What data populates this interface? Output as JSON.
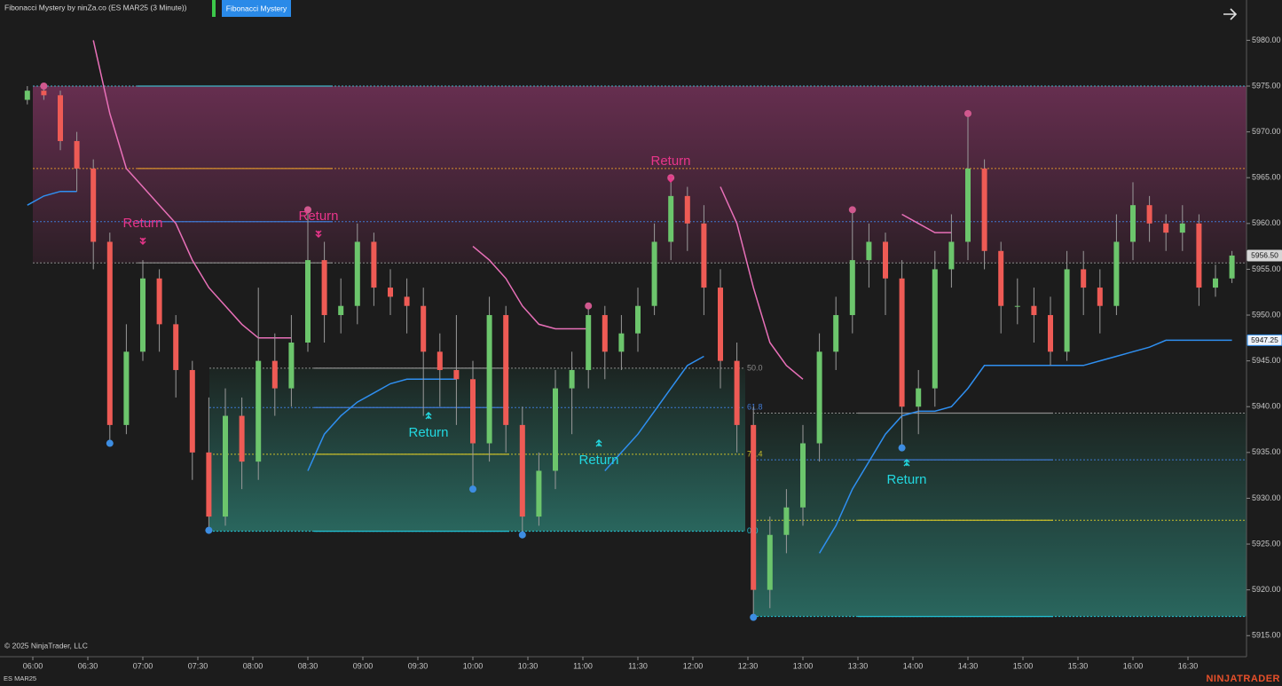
{
  "header": {
    "title": "Fibonacci Mystery by ninZa.co (ES MAR25 (3 Minute))",
    "button": "Fibonacci Mystery"
  },
  "chart_data": {
    "type": "candlestick",
    "up_color": "#6cc56c",
    "down_color": "#ee5b55",
    "open": [
      5973.5,
      5974.5,
      5974,
      5969,
      5966,
      5958,
      5938,
      5946,
      5954,
      5949,
      5944,
      5935,
      5928,
      5939,
      5934,
      5945,
      5942,
      5947,
      5956,
      5950,
      5951,
      5958,
      5953,
      5952,
      5951,
      5946,
      5944,
      5943,
      5936,
      5950,
      5938,
      5928,
      5933,
      5942,
      5944,
      5950,
      5946,
      5948,
      5951,
      5958,
      5963,
      5960,
      5953,
      5945,
      5938,
      5920,
      5926,
      5929,
      5936,
      5946,
      5950,
      5956,
      5958,
      5954,
      5940,
      5942,
      5955,
      5958,
      5966,
      5957,
      5951,
      5951,
      5950,
      5946,
      5955,
      5953,
      5951,
      5958,
      5962,
      5960,
      5959,
      5960,
      5953,
      5954
    ],
    "high": [
      5975,
      5975,
      5974.5,
      5970,
      5967,
      5959,
      5949,
      5956,
      5955,
      5950,
      5945,
      5941,
      5942,
      5941,
      5953,
      5948,
      5950,
      5961.5,
      5958,
      5954,
      5960,
      5959,
      5955,
      5954,
      5953,
      5948,
      5950,
      5945,
      5952,
      5951,
      5940,
      5935,
      5944,
      5946,
      5951,
      5951,
      5950,
      5953,
      5960,
      5965,
      5964,
      5962,
      5955,
      5947,
      5940,
      5928,
      5931,
      5938,
      5948,
      5952,
      5961.5,
      5960,
      5959,
      5956,
      5944,
      5957,
      5961,
      5972,
      5967,
      5958,
      5954,
      5953,
      5952,
      5957,
      5957,
      5955,
      5961,
      5964.5,
      5963,
      5961,
      5962,
      5961,
      5955.5,
      5957
    ],
    "low": [
      5973,
      5973.5,
      5968,
      5963.5,
      5955,
      5936,
      5937,
      5945,
      5946,
      5941,
      5932,
      5926.5,
      5927,
      5931,
      5932,
      5939,
      5940,
      5946,
      5947,
      5948,
      5949,
      5951,
      5950,
      5948,
      5939,
      5940,
      5938,
      5931,
      5934,
      5935,
      5926,
      5927,
      5931,
      5937,
      5942,
      5943,
      5944,
      5946,
      5950,
      5956,
      5957,
      5950,
      5942,
      5935,
      5917,
      5918,
      5924,
      5927,
      5934,
      5944,
      5948,
      5953,
      5950,
      5935.5,
      5937,
      5940,
      5953,
      5956,
      5955,
      5948,
      5949,
      5947,
      5944.5,
      5945,
      5950,
      5948,
      5950,
      5956,
      5958,
      5957,
      5957,
      5951,
      5952,
      5953.5
    ],
    "close": [
      5974.5,
      5974,
      5969,
      5966,
      5958,
      5938,
      5946,
      5954,
      5949,
      5944,
      5935,
      5928,
      5939,
      5934,
      5945,
      5942,
      5947,
      5956,
      5950,
      5951,
      5958,
      5953,
      5952,
      5951,
      5946,
      5944,
      5943,
      5936,
      5950,
      5938,
      5928,
      5933,
      5942,
      5944,
      5950,
      5946,
      5948,
      5951,
      5958,
      5963,
      5960,
      5953,
      5945,
      5938,
      5920,
      5926,
      5929,
      5936,
      5946,
      5950,
      5956,
      5958,
      5954,
      5940,
      5942,
      5955,
      5958,
      5966,
      5957,
      5951,
      5951,
      5950,
      5946,
      5955,
      5953,
      5951,
      5958,
      5962,
      5960,
      5959,
      5960,
      5953,
      5954,
      5956.5
    ],
    "upper_trail": {
      "color": "#e870b8",
      "values": [
        null,
        null,
        null,
        null,
        5980,
        5972,
        5966,
        5964,
        5962,
        5960,
        5956,
        5953,
        5951,
        5949,
        5947.5,
        5947.5,
        5947.5,
        null,
        null,
        null,
        null,
        null,
        null,
        null,
        null,
        null,
        null,
        5957.5,
        5956,
        5954,
        5951,
        5949,
        5948.5,
        5948.5,
        5948.5,
        null,
        null,
        null,
        null,
        null,
        null,
        null,
        5964,
        5960,
        5953,
        5947,
        5944.5,
        5943,
        null,
        null,
        null,
        null,
        null,
        5961,
        5960,
        5959,
        5959,
        null,
        null,
        null,
        null,
        null,
        null,
        null,
        null,
        null,
        null,
        null,
        null,
        null,
        null,
        null,
        null,
        null
      ]
    },
    "lower_trail": {
      "color": "#2f8ff0",
      "values": [
        5962,
        5963,
        5963.5,
        5963.5,
        null,
        null,
        null,
        null,
        null,
        null,
        null,
        null,
        null,
        null,
        null,
        null,
        null,
        5933,
        5937,
        5939,
        5940.5,
        5941.5,
        5942.5,
        5943,
        5943,
        5943,
        5943,
        null,
        null,
        null,
        null,
        null,
        null,
        null,
        null,
        5933,
        5935,
        5937,
        5939.5,
        5942,
        5944.5,
        5945.5,
        null,
        null,
        null,
        null,
        null,
        null,
        5924,
        5927,
        5931,
        5934,
        5937,
        5939,
        5939.5,
        5939.5,
        5940,
        5942,
        5944.5,
        5944.5,
        5944.5,
        5944.5,
        5944.5,
        5944.5,
        5944.5,
        5945,
        5945.5,
        5946,
        5946.5,
        5947.25,
        5947.25,
        5947.25,
        5947.25,
        5947.25
      ]
    },
    "swing_highs": [
      null,
      5975,
      null,
      null,
      null,
      null,
      null,
      null,
      null,
      null,
      null,
      null,
      null,
      null,
      null,
      null,
      null,
      5961.5,
      null,
      null,
      null,
      null,
      null,
      null,
      null,
      null,
      null,
      null,
      null,
      null,
      null,
      null,
      null,
      null,
      5951,
      null,
      null,
      null,
      null,
      5965,
      null,
      null,
      null,
      null,
      null,
      null,
      null,
      null,
      null,
      null,
      5961.5,
      null,
      null,
      null,
      null,
      null,
      null,
      5972,
      null,
      null,
      null,
      null,
      null,
      null,
      null,
      null,
      null,
      null,
      null,
      null,
      null,
      null,
      null,
      null
    ],
    "swing_lows": [
      null,
      null,
      null,
      null,
      null,
      5936,
      null,
      null,
      null,
      null,
      null,
      5926.5,
      null,
      null,
      null,
      null,
      null,
      null,
      null,
      null,
      null,
      null,
      null,
      null,
      null,
      null,
      null,
      5931,
      null,
      null,
      5926,
      null,
      null,
      null,
      null,
      null,
      null,
      null,
      null,
      null,
      null,
      null,
      null,
      null,
      5917,
      null,
      null,
      null,
      null,
      null,
      null,
      null,
      null,
      5935.5,
      null,
      null,
      null,
      null,
      null,
      null,
      null,
      null,
      null,
      null,
      null,
      null,
      null,
      null,
      null,
      null,
      null,
      null,
      null,
      null
    ],
    "zones": [
      {
        "kind": "bear",
        "levels": [
          5975,
          5966,
          5960.2,
          5955.7
        ],
        "line_colors": [
          "#3fb6c8",
          "#d7902c",
          "#3f78d0",
          "#8a8a8a"
        ]
      },
      {
        "kind": "bull",
        "levels": [
          5944.2,
          5939.9,
          5934.8,
          5926.4
        ],
        "line_colors": [
          "#8a8a8a",
          "#3f78d0",
          "#c8bd2a",
          "#22c3d6"
        ]
      },
      {
        "kind": "bull",
        "levels": [
          5939.3,
          5934.2,
          5927.6,
          5917.1
        ],
        "line_colors": [
          "#8a8a8a",
          "#3f78d0",
          "#c8bd2a",
          "#22c3d6"
        ]
      }
    ],
    "fib_labels": [
      "50.0",
      "61.8",
      "76.4",
      "0.0"
    ],
    "annotations": [
      {
        "text": "Return",
        "color": "#e8358a"
      },
      {
        "text": "Return",
        "color": "#e8358a"
      },
      {
        "text": "Return",
        "color": "#e8358a"
      },
      {
        "text": "Return",
        "color": "#22d8e0"
      },
      {
        "text": "Return",
        "color": "#22d8e0"
      },
      {
        "text": "Return",
        "color": "#22d8e0"
      }
    ],
    "ylim": [
      5912.7,
      5984.4
    ],
    "yticks": [
      {
        "value": 5915,
        "label": "5915.00"
      },
      {
        "value": 5920,
        "label": "5920.00"
      },
      {
        "value": 5925,
        "label": "5925.00"
      },
      {
        "value": 5930,
        "label": "5930.00"
      },
      {
        "value": 5935,
        "label": "5935.00"
      },
      {
        "value": 5940,
        "label": "5940.00"
      },
      {
        "value": 5945,
        "label": "5945.00"
      },
      {
        "value": 5950,
        "label": "5950.00"
      },
      {
        "value": 5955,
        "label": "5955.00"
      },
      {
        "value": 5960,
        "label": "5960.00"
      },
      {
        "value": 5965,
        "label": "5965.00"
      },
      {
        "value": 5970,
        "label": "5970.00"
      },
      {
        "value": 5975,
        "label": "5975.00"
      },
      {
        "value": 5980,
        "label": "5980.00"
      }
    ],
    "xticks": [
      "06:00",
      "06:30",
      "07:00",
      "07:30",
      "08:00",
      "08:30",
      "09:00",
      "09:30",
      "10:00",
      "10:30",
      "11:00",
      "11:30",
      "12:00",
      "12:30",
      "13:00",
      "13:30",
      "14:00",
      "14:30",
      "15:00",
      "15:30",
      "16:00",
      "16:30"
    ],
    "price_labels": [
      {
        "value": 5956.5,
        "label": "5956.50"
      },
      {
        "value": 5947.25,
        "label": "5947.25"
      }
    ]
  },
  "footer": {
    "copyright": "© 2025 NinjaTrader, LLC",
    "instrument": "ES MAR25",
    "brand": "NINJATRADER"
  }
}
